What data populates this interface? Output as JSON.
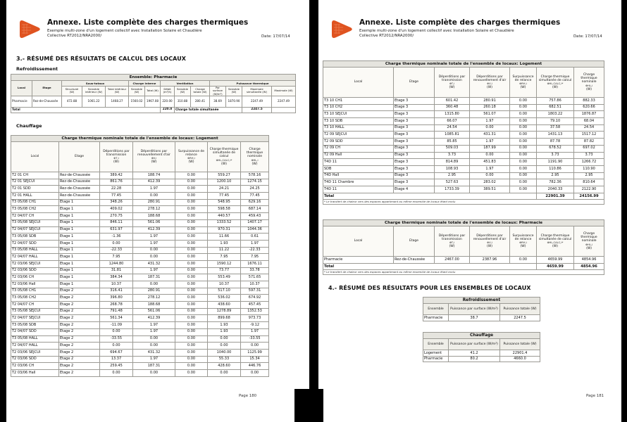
{
  "header": {
    "title": "Annexe. Liste complète des charges thermiques",
    "subtitle_line1": "Exemple multi-zone d'un logement collectif avec Installation Solaire et Chaudière",
    "subtitle_line2": "Collective RT2012/NRA2000/",
    "date_label": "Date: 17/07/14"
  },
  "page_left": {
    "section_title": "3.- RÉSUMÉ DES RÉSULTATS DE CALCUL DES LOCAUX",
    "cooling_label": "Refroidissement",
    "heating_label": "Chauffage",
    "page_number": "Page 180"
  },
  "page_right": {
    "section_title": "4.- RÉSUMÉ DES RÉSULTATS POUR LES ENSEMBLES DE LOCAUX",
    "page_number": "Page 181"
  },
  "cooling_table": {
    "title": "Ensemble: Pharmacie",
    "col_local": "Local",
    "col_etage": "Etage",
    "groups": {
      "sous_totaux": "Sous-totaux",
      "charge_interne": "Charge interne",
      "ventilation": "Ventilation",
      "puissance_thermique": "Puissance thermique"
    },
    "columns": [
      "Structurel (W)",
      "Sensible intérieur (W)",
      "Total intérieur (W)",
      "Sensible (W)",
      "Total (W)",
      "Débit (m³/h)",
      "Sensible (W)",
      "Charge totale (W)",
      "Par surface (W/m²)",
      "Sensible (W)",
      "Maximale simultanée (W)",
      "Maximale (W)"
    ],
    "rows": [
      [
        "Pharmacie",
        "Rez-de-Chaussée",
        "472.88",
        "1061.22",
        "1468.27",
        "1560.02",
        "1967.08",
        "220.00",
        "310.88",
        "280.41",
        "38.69",
        "1870.90",
        "2247.49",
        "2247.49"
      ]
    ],
    "total": {
      "label": "Total",
      "debit": "220.0",
      "simult_label": "Charge totale simultanée",
      "simult_value": "2247.5"
    }
  },
  "heating_table": {
    "title_logement": "Charge thermique nominale totale de l'ensemble de locaux: Logement",
    "title_pharmacie": "Charge thermique nominale totale de l'ensemble de locaux: Pharmacie",
    "col_local": "Local",
    "col_etage": "Etage",
    "col_transmission": {
      "text": "Déperditions par transmission",
      "sym": "ΦT,i",
      "unit": "(W)"
    },
    "col_renouvellement": {
      "text": "Déperditions par renouvellement d'air",
      "sym": "ΦV,i",
      "unit": "(W)"
    },
    "col_surpuissance": {
      "text": "Surpuissance de relance",
      "sym": "ΦRH,i",
      "unit": "(W)"
    },
    "col_simultanee": {
      "text": "Charge thermique simultanée de calcul",
      "sym": "ΦHL,CALC,i*",
      "unit": "(W)"
    },
    "col_nominale": {
      "text": "Charge thermique nominale",
      "sym": "ΦHL,i",
      "unit": "(W)"
    },
    "rows_page180": [
      [
        "T2 01 CH",
        "Rez-de-Chaussée",
        "389.42",
        "188.74",
        "0.00",
        "559.27",
        "578.16"
      ],
      [
        "T2 01 SEJCUI",
        "Rez-de-Chaussée",
        "861.76",
        "412.39",
        "0.00",
        "1200.10",
        "1274.15"
      ],
      [
        "T2 01 SDD",
        "Rez-de-Chaussée",
        "22.28",
        "1.97",
        "0.00",
        "24.21",
        "24.25"
      ],
      [
        "T2 01 HALL",
        "Rez-de-Chaussée",
        "77.45",
        "0.00",
        "0.00",
        "77.45",
        "77.45"
      ],
      [
        "T3 05/08 CH1",
        "Etage 1",
        "348.26",
        "280.91",
        "0.00",
        "548.95",
        "629.16"
      ],
      [
        "T3 05/08 CH2",
        "Etage 1",
        "409.02",
        "278.12",
        "0.00",
        "598.58",
        "687.14"
      ],
      [
        "T2 04/07 CH",
        "Etage 1",
        "270.75",
        "188.68",
        "0.00",
        "440.57",
        "459.43"
      ],
      [
        "T3 05/08 SEJCUI",
        "Etage 1",
        "846.11",
        "561.06",
        "0.00",
        "1333.52",
        "1407.17"
      ],
      [
        "T2 04/07 SEJCUI",
        "Etage 1",
        "631.97",
        "412.39",
        "0.00",
        "970.31",
        "1044.36"
      ],
      [
        "T3 05/08 SDB",
        "Etage 1",
        "-1.36",
        "1.97",
        "0.00",
        "11.66",
        "0.61"
      ],
      [
        "T2 04/07 SDD",
        "Etage 1",
        "0.00",
        "1.97",
        "0.00",
        "1.93",
        "1.97"
      ],
      [
        "T3 05/08 HALL",
        "Etage 1",
        "-22.33",
        "0.00",
        "0.00",
        "11.22",
        "-22.33"
      ],
      [
        "T2 04/07 HALL",
        "Etage 1",
        "7.95",
        "0.00",
        "0.00",
        "7.95",
        "7.95"
      ],
      [
        "T2 03/06 SEJCUI",
        "Etage 1",
        "1244.80",
        "431.32",
        "0.00",
        "1590.12",
        "1676.11"
      ],
      [
        "T2 03/06 SDD",
        "Etage 1",
        "31.81",
        "1.97",
        "0.00",
        "73.77",
        "33.78"
      ],
      [
        "T2 03/06 CH",
        "Etage 1",
        "384.34",
        "187.31",
        "0.00",
        "553.49",
        "571.65"
      ],
      [
        "T2 03/06 Hall",
        "Etage 1",
        "10.37",
        "0.00",
        "0.00",
        "10.37",
        "10.37"
      ],
      [
        "T3 05/08 CH1",
        "Etage 2",
        "316.41",
        "280.91",
        "0.00",
        "517.10",
        "597.31"
      ],
      [
        "T3 05/08 CH2",
        "Etage 2",
        "396.80",
        "278.12",
        "0.00",
        "536.02",
        "674.92"
      ],
      [
        "T2 04/07 CH",
        "Etage 2",
        "268.78",
        "188.68",
        "0.00",
        "438.60",
        "457.45"
      ],
      [
        "T3 05/08 SEJCUI",
        "Etage 2",
        "791.48",
        "561.06",
        "0.00",
        "1278.89",
        "1352.53"
      ],
      [
        "T2 04/07 SEJCUI",
        "Etage 2",
        "561.34",
        "412.39",
        "0.00",
        "899.68",
        "973.73"
      ],
      [
        "T3 05/08 SDB",
        "Etage 2",
        "-11.09",
        "1.97",
        "0.00",
        "1.93",
        "-9.12"
      ],
      [
        "T2 04/07 SDD",
        "Etage 2",
        "0.00",
        "1.97",
        "0.00",
        "1.93",
        "1.97"
      ],
      [
        "T3 05/08 HALL",
        "Etage 2",
        "-33.55",
        "0.00",
        "0.00",
        "0.00",
        "-33.55"
      ],
      [
        "T2 04/07 HALL",
        "Etage 2",
        "0.00",
        "0.00",
        "0.00",
        "0.00",
        "0.00"
      ],
      [
        "T2 03/06 SEJCUI",
        "Etage 2",
        "694.67",
        "431.32",
        "0.00",
        "1040.00",
        "1125.99"
      ],
      [
        "T2 03/06 SDD",
        "Etage 2",
        "13.37",
        "1.97",
        "0.00",
        "55.33",
        "15.34"
      ],
      [
        "T2 03/06 CH",
        "Etage 2",
        "259.45",
        "187.31",
        "0.00",
        "428.60",
        "446.76"
      ],
      [
        "T2 03/06 Hall",
        "Etage 2",
        "0.00",
        "0.00",
        "0.00",
        "0.00",
        "0.00"
      ]
    ],
    "rows_page181": [
      [
        "T3 10 CH1",
        "Etage 3",
        "601.42",
        "280.91",
        "0.00",
        "757.86",
        "882.33"
      ],
      [
        "T3 10 CH2",
        "Etage 3",
        "360.48",
        "260.18",
        "0.00",
        "682.51",
        "620.66"
      ],
      [
        "T3 10 SEJCUI",
        "Etage 3",
        "1315.80",
        "561.07",
        "0.00",
        "1803.22",
        "1876.87"
      ],
      [
        "T3 10 SDB",
        "Etage 3",
        "66.07",
        "1.97",
        "0.00",
        "79.10",
        "68.04"
      ],
      [
        "T3 10 HALL",
        "Etage 3",
        "24.54",
        "0.00",
        "0.00",
        "37.58",
        "24.54"
      ],
      [
        "T2 09 SEJCUI",
        "Etage 3",
        "1085.81",
        "431.31",
        "0.00",
        "1431.13",
        "1517.12"
      ],
      [
        "T2 09 SDD",
        "Etage 3",
        "85.85",
        "1.97",
        "0.00",
        "87.78",
        "87.82"
      ],
      [
        "T2 09 CH",
        "Etage 3",
        "509.03",
        "187.99",
        "0.00",
        "678.52",
        "697.02"
      ],
      [
        "T2 09 Hall",
        "Etage 3",
        "3.73",
        "0.00",
        "0.00",
        "3.73",
        "3.73"
      ],
      [
        "T4D 11",
        "Etage 3",
        "814.89",
        "451.83",
        "0.00",
        "1191.90",
        "1266.72"
      ],
      [
        "SDB",
        "Etage 3",
        "108.93",
        "1.97",
        "0.00",
        "110.86",
        "110.90"
      ],
      [
        "T4D Hall",
        "Etage 3",
        "2.95",
        "0.00",
        "0.00",
        "2.95",
        "2.95"
      ],
      [
        "T4D 11 Chambre",
        "Etage 3",
        "527.63",
        "283.02",
        "0.00",
        "782.36",
        "810.64"
      ],
      [
        "T4D 11",
        "Etage 4",
        "1733.39",
        "389.51",
        "0.00",
        "2040.33",
        "2122.90"
      ]
    ],
    "total_label": "Total",
    "total_logement": {
      "simultanee": "22901.39",
      "nominale": "24156.99"
    },
    "rows_pharmacie": [
      [
        "Pharmacie",
        "Rez-de-Chaussée",
        "2467.00",
        "2387.96",
        "0.00",
        "4659.99",
        "4854.96"
      ]
    ],
    "total_pharmacie": {
      "simultanee": "4659.99",
      "nominale": "4854.96"
    },
    "footnote": "* Le transfert de chaleur vers des espaces appartenant au même ensemble de locaux étant exclu"
  },
  "summary_cooling": {
    "title": "Refroidissement",
    "headers": [
      "Ensemble",
      "Puissance par surface (W/m²)",
      "Puissance totale (W)"
    ],
    "rows": [
      [
        "Pharmacie",
        "38.7",
        "2247.5"
      ]
    ]
  },
  "summary_heating": {
    "title": "Chauffage",
    "headers": [
      "Ensemble",
      "Puissance par surface (W/m²)",
      "Puissance totale (W)"
    ],
    "rows": [
      [
        "Logement",
        "41.2",
        "22901.4"
      ],
      [
        "Pharmacie",
        "80.2",
        "4660.0"
      ]
    ]
  }
}
